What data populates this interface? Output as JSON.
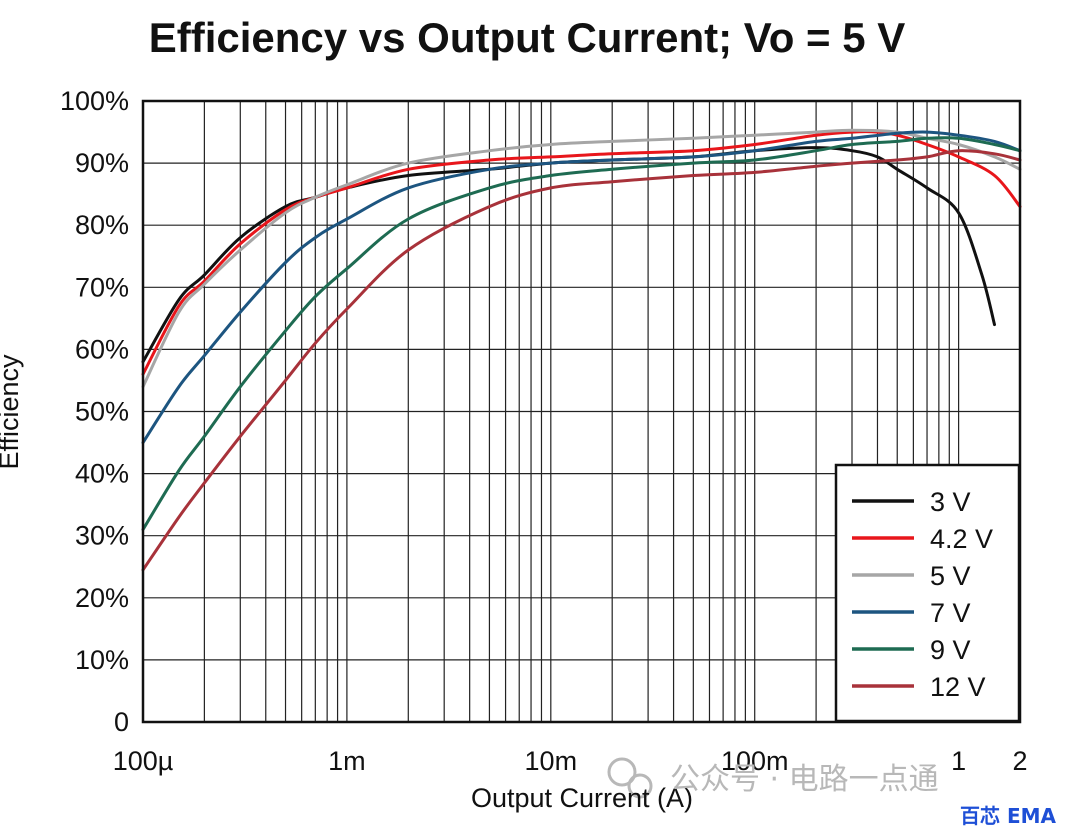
{
  "chart_data": {
    "type": "line",
    "title": "Efficiency vs Output Current; Vo = 5 V",
    "xlabel": "Output Current (A)",
    "ylabel": "Efficiency",
    "x_scale": "log",
    "xlim": [
      0.0001,
      2
    ],
    "ylim": [
      0,
      100
    ],
    "grid": true,
    "legend_position": "bottom-right",
    "x_ticks": [
      {
        "value": 0.0001,
        "label": "100µ"
      },
      {
        "value": 0.001,
        "label": "1m"
      },
      {
        "value": 0.01,
        "label": "10m"
      },
      {
        "value": 0.1,
        "label": "100m"
      },
      {
        "value": 1,
        "label": "1"
      },
      {
        "value": 2,
        "label": "2"
      }
    ],
    "y_ticks": [
      {
        "value": 0,
        "label": "0"
      },
      {
        "value": 10,
        "label": "10%"
      },
      {
        "value": 20,
        "label": "20%"
      },
      {
        "value": 30,
        "label": "30%"
      },
      {
        "value": 40,
        "label": "40%"
      },
      {
        "value": 50,
        "label": "50%"
      },
      {
        "value": 60,
        "label": "60%"
      },
      {
        "value": 70,
        "label": "70%"
      },
      {
        "value": 80,
        "label": "80%"
      },
      {
        "value": 90,
        "label": "90%"
      },
      {
        "value": 100,
        "label": "100%"
      }
    ],
    "series": [
      {
        "name": "3 V",
        "color": "#111111",
        "x": [
          0.0001,
          0.00015,
          0.0002,
          0.0003,
          0.0005,
          0.0007,
          0.001,
          0.002,
          0.005,
          0.01,
          0.02,
          0.05,
          0.1,
          0.2,
          0.3,
          0.4,
          0.5,
          0.7,
          1,
          1.3,
          1.5
        ],
        "y": [
          58,
          68,
          72,
          78,
          83,
          84.5,
          86,
          88,
          89,
          90,
          90.5,
          91,
          92,
          92.5,
          92,
          91,
          89,
          86,
          82,
          72,
          64
        ]
      },
      {
        "name": "4.2 V",
        "color": "#e8161b",
        "x": [
          0.0001,
          0.00015,
          0.0002,
          0.0003,
          0.0005,
          0.0007,
          0.001,
          0.002,
          0.005,
          0.01,
          0.02,
          0.05,
          0.1,
          0.2,
          0.3,
          0.4,
          0.5,
          0.7,
          1,
          1.5,
          2
        ],
        "y": [
          56,
          67,
          71,
          77,
          82.5,
          84.5,
          86,
          89,
          90.5,
          91,
          91.5,
          92,
          93,
          94.5,
          95,
          95,
          94.5,
          93,
          91,
          88,
          83
        ]
      },
      {
        "name": "5 V",
        "color": "#a6a6a6",
        "x": [
          0.0001,
          0.00015,
          0.0002,
          0.0003,
          0.0005,
          0.0007,
          0.001,
          0.002,
          0.005,
          0.01,
          0.02,
          0.05,
          0.1,
          0.2,
          0.3,
          0.5,
          0.7,
          1,
          1.5,
          2
        ],
        "y": [
          54,
          66,
          70.5,
          76,
          82,
          84.5,
          86.5,
          90,
          92,
          93,
          93.5,
          94,
          94.5,
          95,
          95.3,
          95,
          94,
          93,
          91,
          89
        ]
      },
      {
        "name": "7 V",
        "color": "#1d5580",
        "x": [
          0.0001,
          0.00015,
          0.0002,
          0.0003,
          0.0005,
          0.0007,
          0.001,
          0.002,
          0.005,
          0.01,
          0.02,
          0.05,
          0.1,
          0.2,
          0.3,
          0.5,
          0.7,
          1,
          1.5,
          2
        ],
        "y": [
          45,
          54,
          59,
          66,
          74,
          78,
          81,
          86,
          89,
          90,
          90.5,
          91,
          92,
          93.5,
          94,
          94.8,
          95,
          94.5,
          93.5,
          92
        ]
      },
      {
        "name": "9 V",
        "color": "#1e6b52",
        "x": [
          0.0001,
          0.00015,
          0.0002,
          0.0003,
          0.0005,
          0.0007,
          0.001,
          0.002,
          0.005,
          0.01,
          0.02,
          0.05,
          0.1,
          0.2,
          0.3,
          0.5,
          0.7,
          1,
          1.5,
          2
        ],
        "y": [
          31,
          40.5,
          46,
          54,
          63,
          68.5,
          73,
          81,
          86,
          88,
          89,
          90,
          90.5,
          92,
          93,
          93.5,
          94,
          94,
          93,
          92
        ]
      },
      {
        "name": "12 V",
        "color": "#a8323a",
        "x": [
          0.0001,
          0.00015,
          0.0002,
          0.0003,
          0.0005,
          0.0007,
          0.001,
          0.002,
          0.005,
          0.01,
          0.02,
          0.05,
          0.1,
          0.2,
          0.3,
          0.5,
          0.7,
          1,
          1.5,
          2
        ],
        "y": [
          24.5,
          33,
          38.5,
          46,
          55,
          61,
          66.5,
          76,
          83,
          86,
          87,
          88,
          88.5,
          89.5,
          90,
          90.5,
          91,
          92,
          91.5,
          90.5
        ]
      }
    ]
  },
  "watermark": {
    "text": "公众号 · 电路一点通",
    "icon": "wechat-icon",
    "brand": "百芯 EMA",
    "brand_color": "#1e4fd6"
  }
}
